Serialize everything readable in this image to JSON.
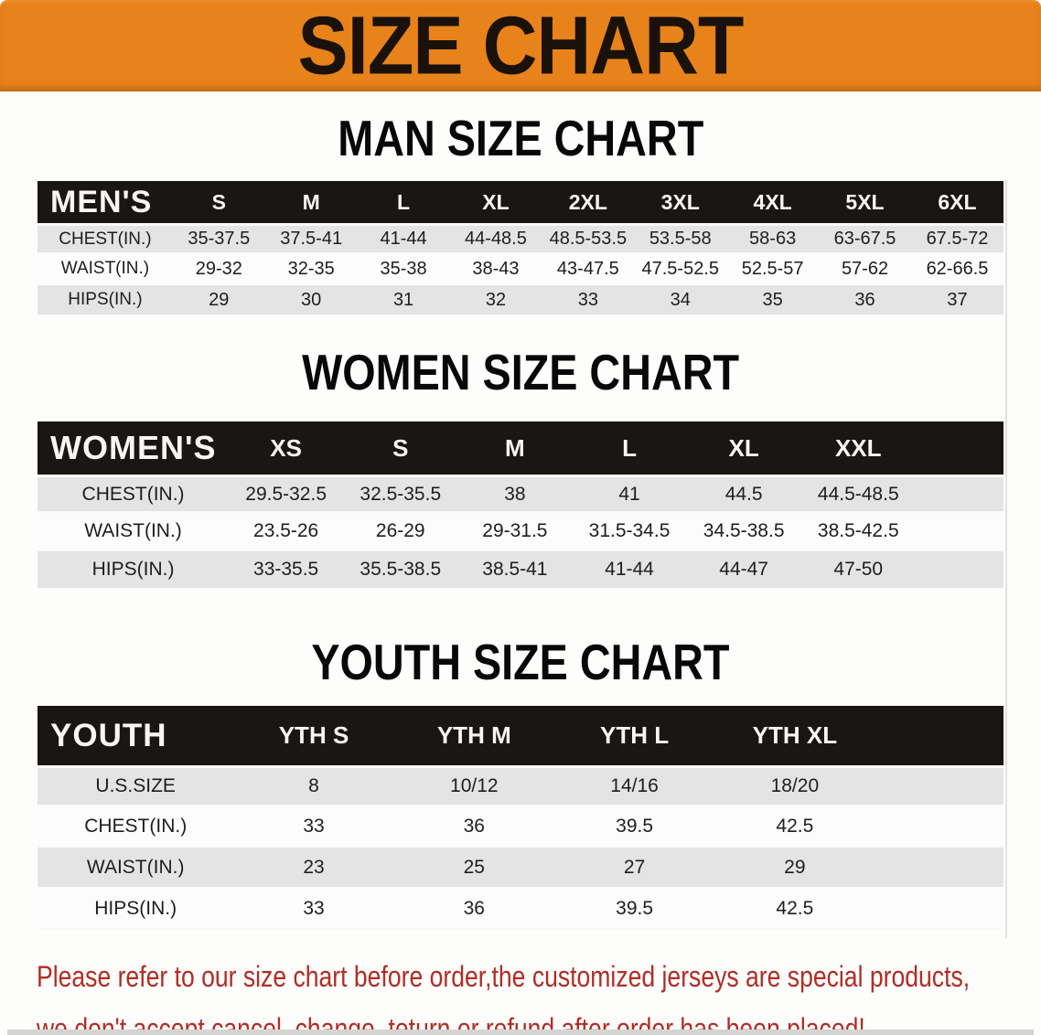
{
  "banner": {
    "title": "SIZE CHART"
  },
  "colors": {
    "banner_orange": "#E8821B",
    "header_bar_black": "#1A1613",
    "row_gray": "#E4E4E4",
    "notice_red": "#B02E25"
  },
  "sections": [
    {
      "id": "men",
      "title": "MAN SIZE CHART",
      "corner_label": "MEN'S",
      "columns": [
        "S",
        "M",
        "L",
        "XL",
        "2XL",
        "3XL",
        "4XL",
        "5XL",
        "6XL"
      ],
      "rows": [
        {
          "label": "CHEST(IN.)",
          "values": [
            "35-37.5",
            "37.5-41",
            "41-44",
            "44-48.5",
            "48.5-53.5",
            "53.5-58",
            "58-63",
            "63-67.5",
            "67.5-72"
          ]
        },
        {
          "label": "WAIST(IN.)",
          "values": [
            "29-32",
            "32-35",
            "35-38",
            "38-43",
            "43-47.5",
            "47.5-52.5",
            "52.5-57",
            "57-62",
            "62-66.5"
          ]
        },
        {
          "label": "HIPS(IN.)",
          "values": [
            "29",
            "30",
            "31",
            "32",
            "33",
            "34",
            "35",
            "36",
            "37"
          ]
        }
      ]
    },
    {
      "id": "women",
      "title": "WOMEN SIZE CHART",
      "corner_label": "WOMEN'S",
      "columns": [
        "XS",
        "S",
        "M",
        "L",
        "XL",
        "XXL"
      ],
      "rows": [
        {
          "label": "CHEST(IN.)",
          "values": [
            "29.5-32.5",
            "32.5-35.5",
            "38",
            "41",
            "44.5",
            "44.5-48.5"
          ]
        },
        {
          "label": "WAIST(IN.)",
          "values": [
            "23.5-26",
            "26-29",
            "29-31.5",
            "31.5-34.5",
            "34.5-38.5",
            "38.5-42.5"
          ]
        },
        {
          "label": "HIPS(IN.)",
          "values": [
            "33-35.5",
            "35.5-38.5",
            "38.5-41",
            "41-44",
            "44-47",
            "47-50"
          ]
        }
      ]
    },
    {
      "id": "youth",
      "title": "YOUTH SIZE CHART",
      "corner_label": "YOUTH",
      "columns": [
        "YTH S",
        "YTH M",
        "YTH L",
        "YTH XL"
      ],
      "rows": [
        {
          "label": "U.S.SIZE",
          "values": [
            "8",
            "10/12",
            "14/16",
            "18/20"
          ]
        },
        {
          "label": "CHEST(IN.)",
          "values": [
            "33",
            "36",
            "39.5",
            "42.5"
          ]
        },
        {
          "label": "WAIST(IN.)",
          "values": [
            "23",
            "25",
            "27",
            "29"
          ]
        },
        {
          "label": "HIPS(IN.)",
          "values": [
            "33",
            "36",
            "39.5",
            "42.5"
          ]
        }
      ]
    }
  ],
  "footer": {
    "line1": "Please refer to our size chart before order,the customized jerseys are special products,",
    "line2": "we don't accept cancel, change, teturn or refund after order has been placed!"
  }
}
